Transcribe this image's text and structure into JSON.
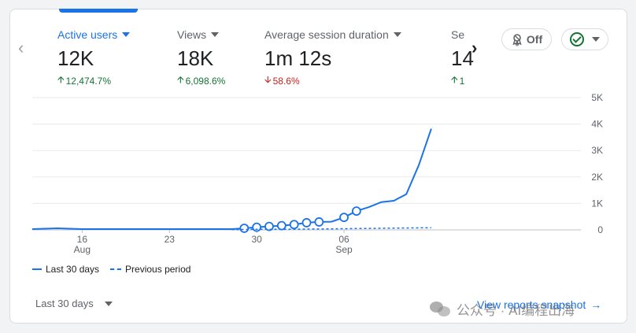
{
  "metrics": [
    {
      "title": "Active users",
      "value": "12K",
      "change": "12,474.7%",
      "direction": "up",
      "active": true
    },
    {
      "title": "Views",
      "value": "18K",
      "change": "6,098.6%",
      "direction": "up",
      "active": false
    },
    {
      "title": "Average session duration",
      "value": "1m 12s",
      "change": "58.6%",
      "direction": "down",
      "active": false
    },
    {
      "title": "Se",
      "value": "14",
      "change": "1",
      "direction": "up",
      "active": false
    }
  ],
  "controls": {
    "off_label": "Off",
    "range_label": "Last 30 days",
    "view_snapshot_label": "View reports snapshot"
  },
  "legend": {
    "current": "Last 30 days",
    "previous": "Previous period"
  },
  "watermark": "公众号 · AI编程出海",
  "colors": {
    "accent": "#1a73e8",
    "up": "#137333",
    "down": "#c5221f"
  },
  "chart_data": {
    "type": "line",
    "x_ticks": [
      {
        "day": 16,
        "label": "16",
        "sub": "Aug"
      },
      {
        "day": 23,
        "label": "23",
        "sub": ""
      },
      {
        "day": 30,
        "label": "30",
        "sub": ""
      },
      {
        "day": 37,
        "label": "06",
        "sub": "Sep"
      }
    ],
    "y_ticks": [
      "0",
      "1K",
      "2K",
      "3K",
      "4K",
      "5K"
    ],
    "ylim": [
      0,
      5000
    ],
    "xlim": [
      12,
      56
    ],
    "series": [
      {
        "name": "Last 30 days",
        "style": "solid",
        "x": [
          12,
          14,
          16,
          18,
          20,
          22,
          24,
          26,
          28,
          29,
          30,
          31,
          32,
          33,
          34,
          35,
          36,
          37,
          38,
          39,
          40,
          41,
          42,
          43,
          44
        ],
        "y": [
          30,
          60,
          30,
          30,
          30,
          30,
          30,
          30,
          30,
          60,
          100,
          130,
          160,
          200,
          270,
          300,
          310,
          470,
          710,
          860,
          1050,
          1100,
          1350,
          2450,
          3820
        ],
        "markers": [
          29,
          30,
          31,
          32,
          33,
          34,
          35,
          37,
          38
        ]
      },
      {
        "name": "Previous period",
        "style": "dashed",
        "x": [
          28,
          30,
          32,
          34,
          36,
          38,
          40,
          42,
          44
        ],
        "y": [
          10,
          20,
          20,
          30,
          40,
          50,
          60,
          70,
          80
        ]
      }
    ]
  }
}
